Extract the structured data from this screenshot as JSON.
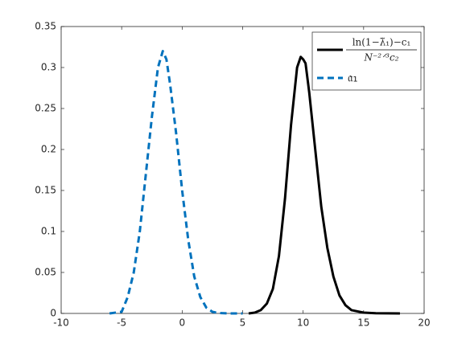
{
  "chart_data": {
    "type": "line",
    "xlim": [
      -10,
      20
    ],
    "xticks": [
      -10,
      -5,
      0,
      5,
      10,
      15,
      20
    ],
    "ylim": [
      0,
      0.35
    ],
    "yticks": [
      0,
      0.05,
      0.1,
      0.15,
      0.2,
      0.25,
      0.3,
      0.35
    ],
    "legend": "northeast",
    "series": [
      {
        "name": {
          "numerator": "ln(1−λ̃₁)−c₁",
          "denominator": "N⁻²ᐟ³c₂"
        },
        "color": "#000000",
        "style": "solid",
        "x": [
          5.5,
          6,
          6.5,
          7,
          7.5,
          8,
          8.5,
          9,
          9.5,
          9.8,
          10,
          10.2,
          10.5,
          11,
          11.5,
          12,
          12.5,
          13,
          13.5,
          14,
          15,
          16,
          18
        ],
        "values": [
          0,
          0.001,
          0.004,
          0.012,
          0.03,
          0.07,
          0.14,
          0.23,
          0.3,
          0.313,
          0.31,
          0.305,
          0.27,
          0.2,
          0.13,
          0.08,
          0.045,
          0.022,
          0.01,
          0.004,
          0.001,
          0.0002,
          0
        ]
      },
      {
        "name": "𝔞₁",
        "color": "#0072bd",
        "style": "dashed",
        "x": [
          -6,
          -5,
          -4.5,
          -4,
          -3.5,
          -3,
          -2.5,
          -2,
          -1.6,
          -1.3,
          -1,
          -0.5,
          0,
          0.5,
          1,
          1.5,
          2,
          2.5,
          3,
          4,
          5
        ],
        "values": [
          0,
          0.002,
          0.02,
          0.05,
          0.1,
          0.17,
          0.24,
          0.3,
          0.32,
          0.31,
          0.28,
          0.22,
          0.15,
          0.09,
          0.045,
          0.02,
          0.007,
          0.002,
          0.0005,
          0,
          0
        ]
      }
    ]
  }
}
